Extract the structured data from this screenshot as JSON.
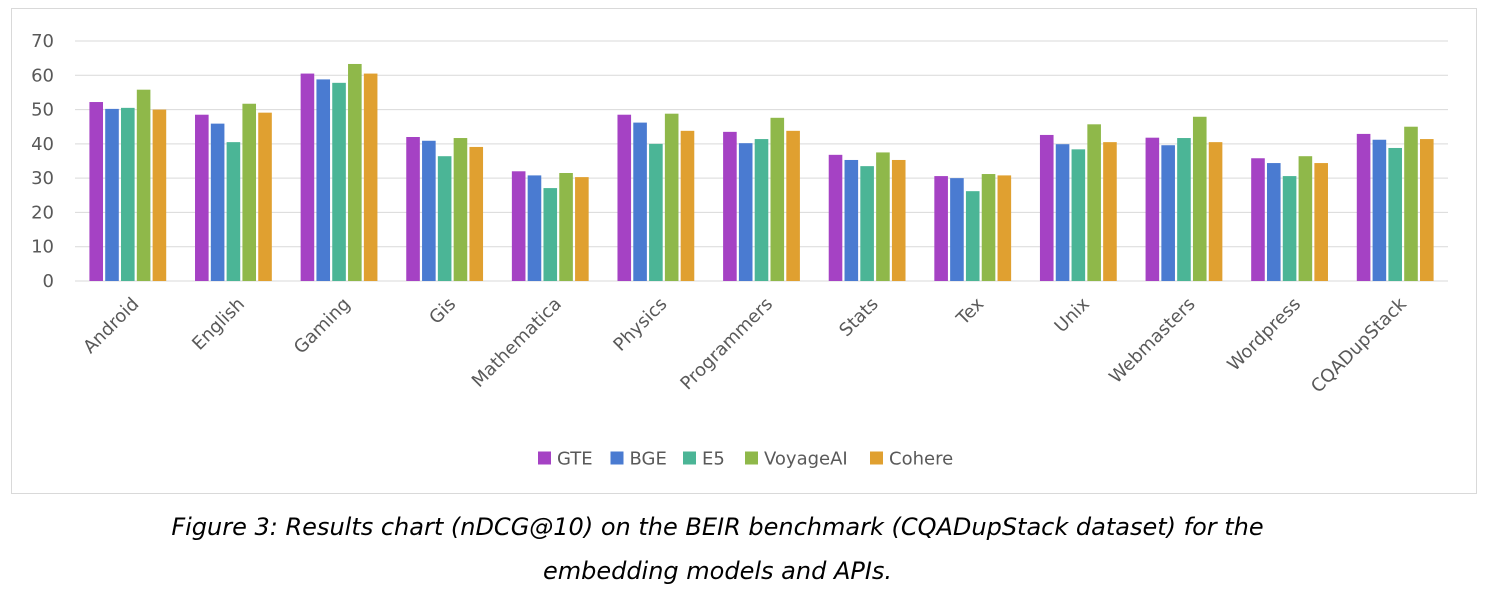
{
  "chart_data": {
    "type": "bar",
    "categories": [
      "Android",
      "English",
      "Gaming",
      "Gis",
      "Mathematica",
      "Physics",
      "Programmers",
      "Stats",
      "Tex",
      "Unix",
      "Webmasters",
      "Wordpress",
      "CQADupStack"
    ],
    "series": [
      {
        "name": "GTE",
        "color": "#a542c4",
        "values": [
          52.2,
          48.5,
          60.5,
          42.0,
          32.0,
          48.5,
          43.5,
          36.8,
          30.6,
          42.6,
          41.8,
          35.8,
          42.9
        ]
      },
      {
        "name": "BGE",
        "color": "#4a7bd1",
        "values": [
          50.2,
          45.9,
          58.8,
          40.9,
          30.8,
          46.2,
          40.2,
          35.3,
          30.0,
          39.9,
          39.6,
          34.4,
          41.2
        ]
      },
      {
        "name": "E5",
        "color": "#4bb596",
        "values": [
          50.5,
          40.5,
          57.8,
          36.4,
          27.1,
          40.0,
          41.4,
          33.5,
          26.2,
          38.4,
          41.7,
          30.6,
          38.8
        ]
      },
      {
        "name": "VoyageAI",
        "color": "#8fb84a",
        "values": [
          55.8,
          51.7,
          63.3,
          41.7,
          31.5,
          48.8,
          47.6,
          37.5,
          31.2,
          45.7,
          47.9,
          36.4,
          45.0
        ]
      },
      {
        "name": "Cohere",
        "color": "#e0a030",
        "values": [
          50.0,
          49.1,
          60.5,
          39.1,
          30.3,
          43.8,
          43.8,
          35.3,
          30.8,
          40.5,
          40.5,
          34.4,
          41.4
        ]
      }
    ],
    "yticks": [
      0,
      10,
      20,
      30,
      40,
      50,
      60,
      70
    ],
    "ylim": [
      0,
      70
    ],
    "grid": true,
    "legend_position": "bottom",
    "title": "",
    "xlabel": "",
    "ylabel": ""
  },
  "caption": {
    "line1": "Figure 3: Results chart (nDCG@10) on the BEIR benchmark (CQADupStack dataset) for the",
    "line2": "embedding models and APIs."
  }
}
